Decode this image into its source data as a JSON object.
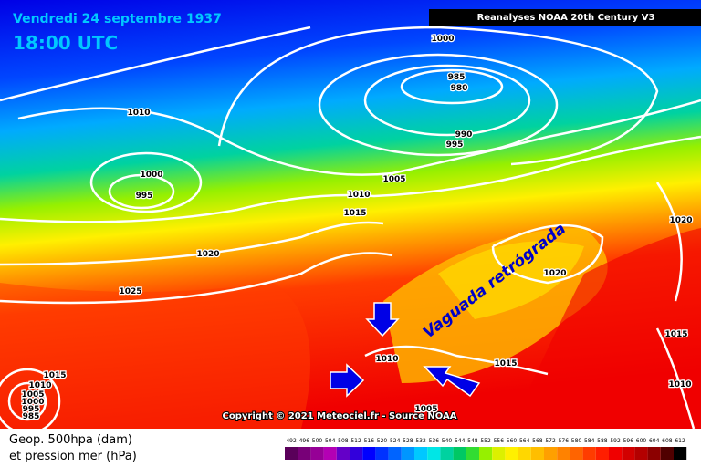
{
  "header": {
    "date": "Vendredi 24 septembre 1937",
    "time": "18:00 UTC",
    "source": "Reanalyses NOAA 20th Century V3"
  },
  "isobar_labels": [
    "1000",
    "985",
    "980",
    "990",
    "995",
    "1010",
    "1000",
    "995",
    "1005",
    "1010",
    "1015",
    "1020",
    "1025",
    "1020",
    "1020",
    "1010",
    "1015",
    "1015",
    "1010",
    "1005",
    "1000",
    "995",
    "985",
    "1015",
    "1010",
    "1005"
  ],
  "annotation": "Vaguada retrógrada",
  "copyright": "Copyright © 2021 Meteociel.fr - Source NOAA",
  "legend": {
    "lines": [
      "Geop. 500hpa (dam)",
      "et pression mer (hPa)"
    ],
    "levels": [
      492,
      496,
      500,
      504,
      508,
      512,
      516,
      520,
      524,
      528,
      532,
      536,
      540,
      544,
      548,
      552,
      556,
      560,
      564,
      568,
      572,
      576,
      580,
      584,
      588,
      592,
      596,
      600,
      604,
      608,
      612
    ],
    "colors": [
      "#5a005a",
      "#780078",
      "#960096",
      "#b400b4",
      "#6400c8",
      "#3200dc",
      "#0000ff",
      "#0032ff",
      "#0064ff",
      "#0096ff",
      "#00c8ff",
      "#00e6e6",
      "#00d2a0",
      "#00c864",
      "#32dc32",
      "#96f000",
      "#dcf000",
      "#fff000",
      "#ffd700",
      "#ffbe00",
      "#ffa000",
      "#ff8200",
      "#ff6400",
      "#ff3c00",
      "#ff1e00",
      "#f00000",
      "#d20000",
      "#b40000",
      "#8c0000",
      "#500000",
      "#000000"
    ]
  }
}
